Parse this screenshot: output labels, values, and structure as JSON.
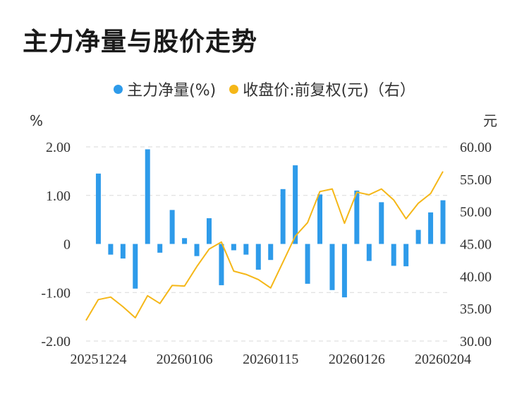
{
  "title": "主力净量与股价走势",
  "legend": {
    "bar_label": "主力净量(%)",
    "line_label": "收盘价:前复权(元)（右）"
  },
  "colors": {
    "bar": "#2e9bea",
    "line": "#f5b718",
    "grid": "#d9d9d9"
  },
  "chart_data": {
    "type": "bar+line",
    "left_axis": {
      "unit": "%",
      "ylim": [
        -2,
        2
      ],
      "ticks": [
        "2.00",
        "1.00",
        "0",
        "-1.00",
        "-2.00"
      ],
      "tick_values": [
        2,
        1,
        0,
        -1,
        -2
      ]
    },
    "right_axis": {
      "unit": "元",
      "ylim": [
        30,
        60
      ],
      "ticks": [
        "60.00",
        "55.00",
        "50.00",
        "45.00",
        "40.00",
        "35.00",
        "30.00"
      ],
      "tick_values": [
        60,
        55,
        50,
        45,
        40,
        35,
        30
      ]
    },
    "x_tick_labels": [
      "20251224",
      "20260106",
      "20260115",
      "20260126",
      "20260204"
    ],
    "x_tick_index": [
      1,
      8,
      15,
      22,
      29
    ],
    "series": [
      {
        "name": "主力净量(%)",
        "type": "bar",
        "axis": "left",
        "values": [
          null,
          1.45,
          -0.22,
          -0.3,
          -0.92,
          1.95,
          -0.18,
          0.7,
          0.12,
          -0.25,
          0.53,
          -0.85,
          -0.13,
          -0.22,
          -0.53,
          -0.33,
          1.13,
          1.62,
          -0.82,
          1.02,
          -0.95,
          -1.1,
          1.1,
          -0.35,
          0.86,
          -0.45,
          -0.46,
          0.29,
          0.65,
          0.9
        ]
      },
      {
        "name": "收盘价:前复权(元)（右）",
        "type": "line",
        "axis": "right",
        "values": [
          33.2,
          36.4,
          36.8,
          35.3,
          33.6,
          37.0,
          35.8,
          38.6,
          38.5,
          41.5,
          44.2,
          45.3,
          40.8,
          40.3,
          39.5,
          38.2,
          42.2,
          46.2,
          48.3,
          53.1,
          53.5,
          48.2,
          53.0,
          52.6,
          53.5,
          51.8,
          48.9,
          51.3,
          52.8,
          56.2
        ]
      }
    ]
  }
}
